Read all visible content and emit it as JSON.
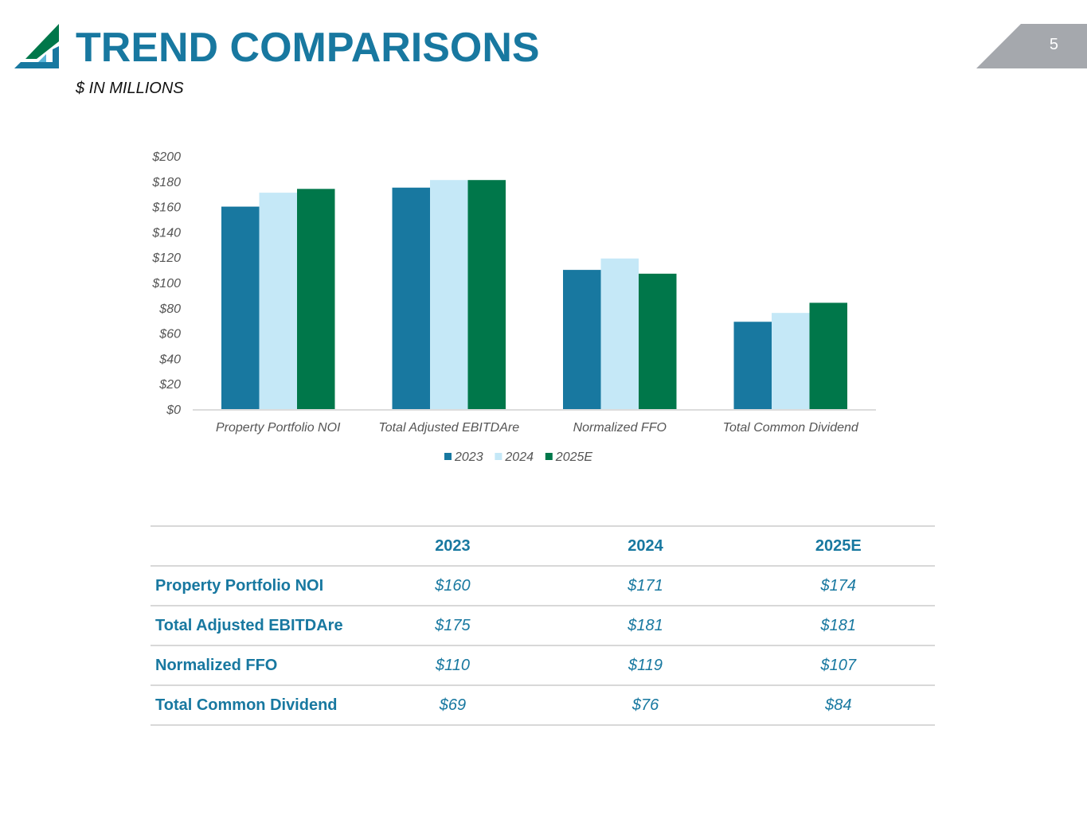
{
  "header": {
    "title": "TREND COMPARISONS",
    "subtitle": "$ IN MILLIONS",
    "page_number": "5"
  },
  "colors": {
    "brand_blue": "#1878a0",
    "light_blue": "#c5e8f7",
    "green": "#00774a",
    "tab_gray": "#a5a8ad"
  },
  "icons": {
    "logo": "company-logo-icon"
  },
  "chart_data": {
    "type": "bar",
    "categories": [
      "Property Portfolio NOI",
      "Total Adjusted EBITDAre",
      "Normalized FFO",
      "Total Common Dividend"
    ],
    "series": [
      {
        "name": "2023",
        "color": "#1878a0",
        "values": [
          160,
          175,
          110,
          69
        ]
      },
      {
        "name": "2024",
        "color": "#c5e8f7",
        "values": [
          171,
          181,
          119,
          76
        ]
      },
      {
        "name": "2025E",
        "color": "#00774a",
        "values": [
          174,
          181,
          107,
          84
        ]
      }
    ],
    "ylim": [
      0,
      200
    ],
    "yticks": [
      0,
      20,
      40,
      60,
      80,
      100,
      120,
      140,
      160,
      180,
      200
    ],
    "ytick_labels": [
      "$0",
      "$20",
      "$40",
      "$60",
      "$80",
      "$100",
      "$120",
      "$140",
      "$160",
      "$180",
      "$200"
    ],
    "grid": false,
    "legend": "bottom"
  },
  "table": {
    "columns": [
      "",
      "2023",
      "2024",
      "2025E"
    ],
    "rows": [
      {
        "label": "Property Portfolio NOI",
        "values": [
          "$160",
          "$171",
          "$174"
        ]
      },
      {
        "label": "Total Adjusted EBITDAre",
        "values": [
          "$175",
          "$181",
          "$181"
        ]
      },
      {
        "label": "Normalized FFO",
        "values": [
          "$110",
          "$119",
          "$107"
        ]
      },
      {
        "label": "Total Common Dividend",
        "values": [
          "$69",
          "$76",
          "$84"
        ]
      }
    ]
  }
}
